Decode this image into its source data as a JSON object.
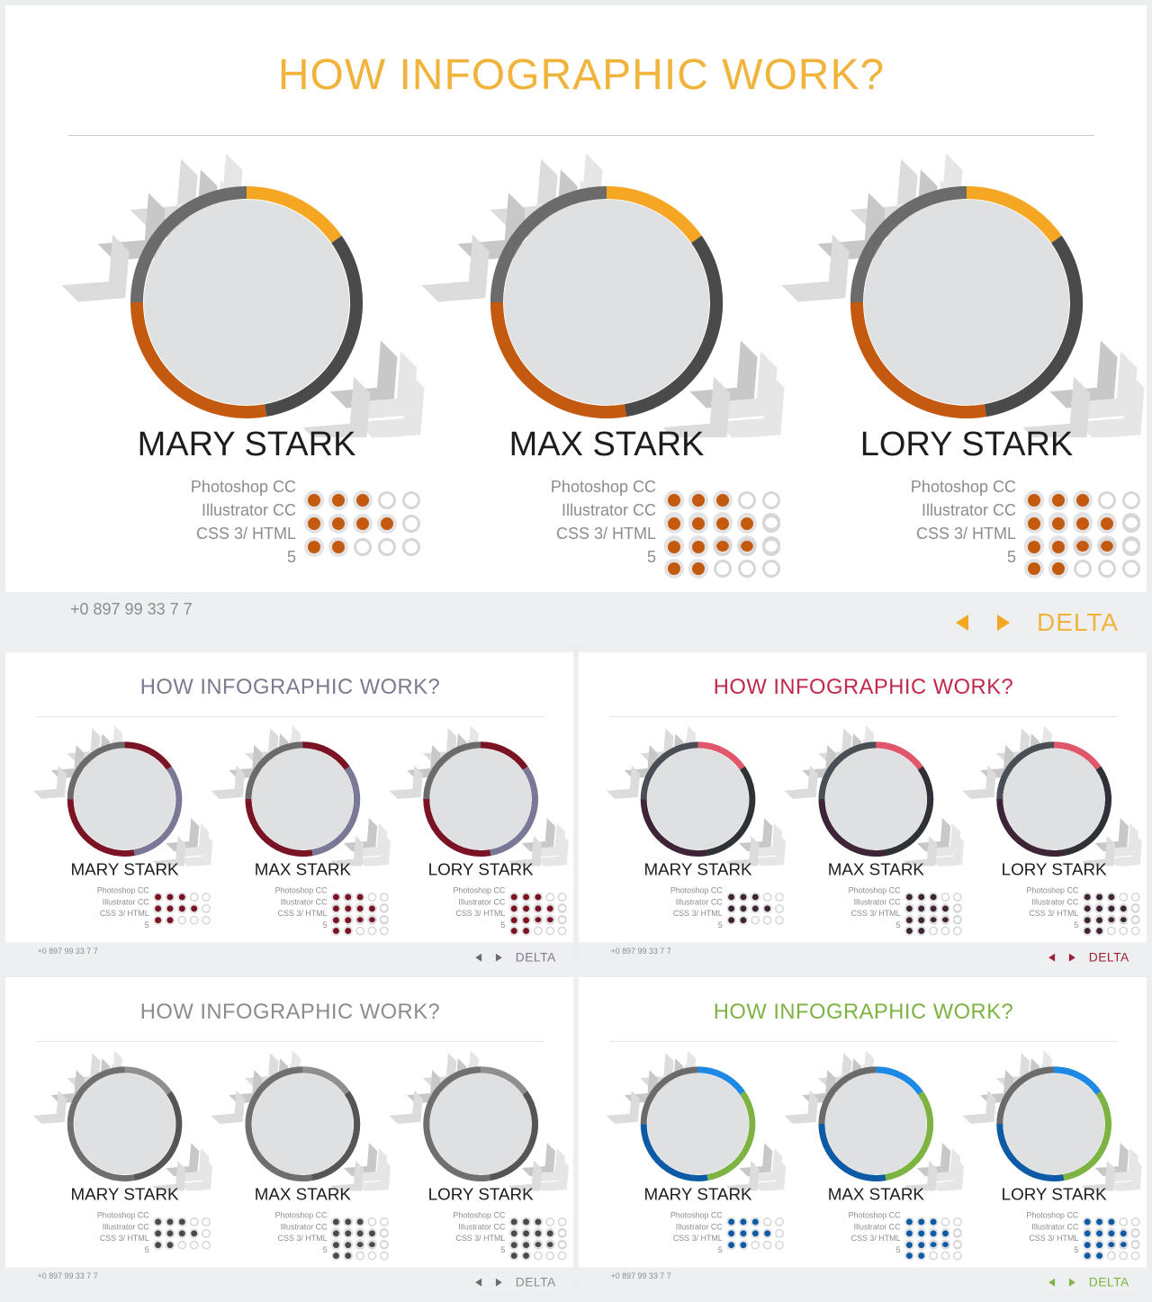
{
  "slide_title": "HOW INFOGRAPHIC WORK?",
  "phone": "+0 897 99 33 7 7",
  "brand": "DELTA",
  "skills": {
    "photoshop": "Photoshop CC",
    "illustrator": "Illustrator CC",
    "css": "CSS 3/ HTML",
    "scale_max": "5"
  },
  "profiles": [
    {
      "name": "MARY STARK",
      "ratings": [
        3,
        4,
        2
      ]
    },
    {
      "name": "MAX STARK",
      "ratings": [
        3,
        4,
        2
      ]
    },
    {
      "name": "LORY STARK",
      "ratings": [
        3,
        4,
        2
      ]
    }
  ],
  "themes": [
    {
      "title": "#f0b43c",
      "ring": [
        "#6b6b6b",
        "#f5a623",
        "#4a4a4a",
        "#c45a0f"
      ],
      "dot": "#c45a0f",
      "arrow": "#f5a623",
      "brand": "#f0b43c"
    },
    {
      "title": "#7a7b8e",
      "ring": [
        "#6b6b6b",
        "#7a1424",
        "#7a7897",
        "#7a1424"
      ],
      "dot": "#7a1424",
      "arrow": "#6b6b6b",
      "brand": "#7a7b8e"
    },
    {
      "title": "#c1284b",
      "ring": [
        "#4a4f56",
        "#e0566a",
        "#2e3236",
        "#3d2436"
      ],
      "dot": "#3d2436",
      "arrow": "#9e1f35",
      "brand": "#9e1f35"
    },
    {
      "title": "#8a8d90",
      "ring": [
        "#6f6f6f",
        "#8f8f8f",
        "#555555",
        "#6f6f6f"
      ],
      "dot": "#4a4a4a",
      "arrow": "#6b6b6b",
      "brand": "#8a8d90"
    },
    {
      "title": "#7cb342",
      "ring": [
        "#6b6b6b",
        "#1e88e5",
        "#7cb342",
        "#0d5aa7"
      ],
      "dot": "#0d5aa7",
      "arrow": "#7cb342",
      "brand": "#7cb342"
    }
  ]
}
